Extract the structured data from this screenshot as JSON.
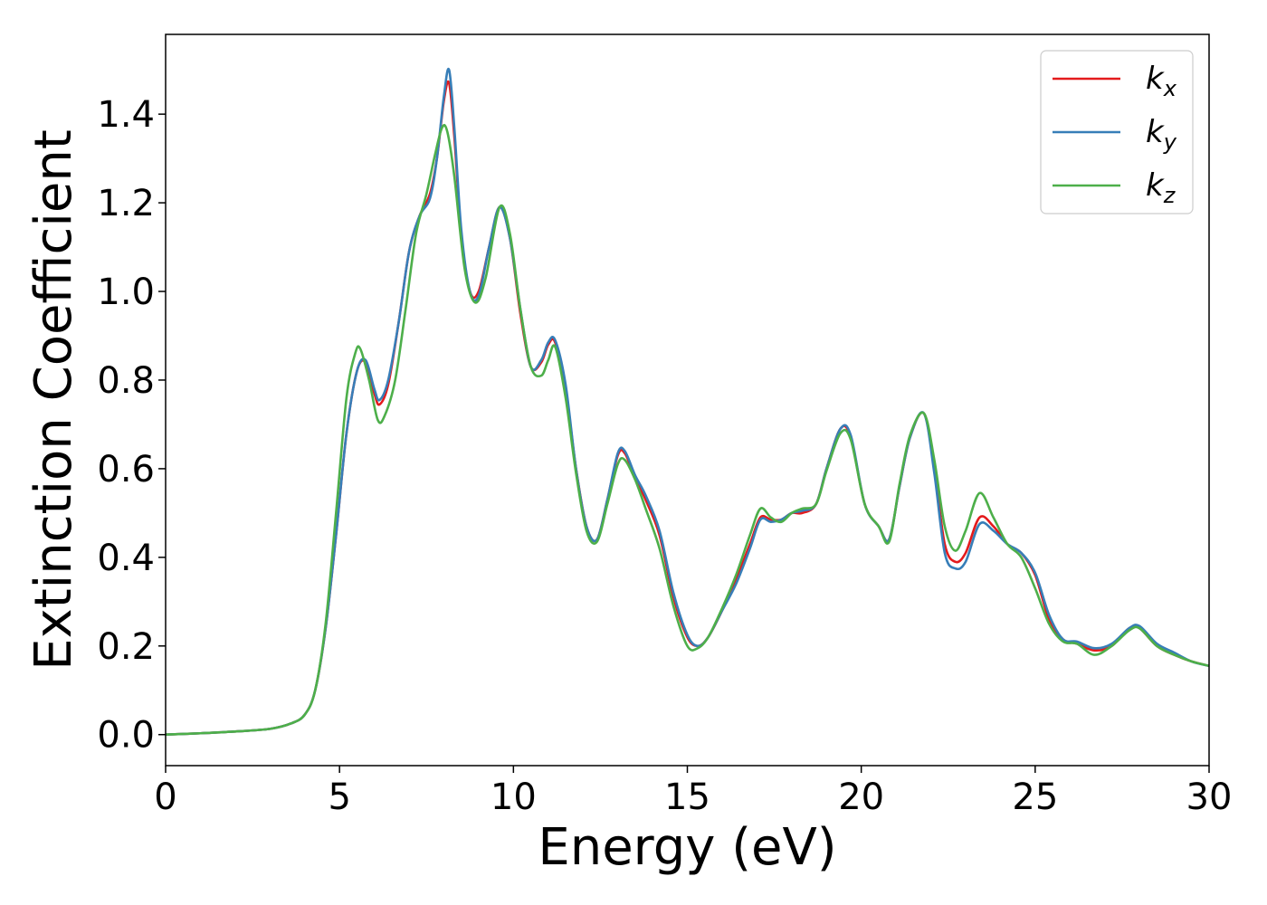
{
  "chart_data": {
    "type": "line",
    "title": "",
    "xlabel": "Energy (eV)",
    "ylabel": "Extinction Coefficient",
    "xlim": [
      0,
      30
    ],
    "ylim": [
      -0.07,
      1.58
    ],
    "xticks": [
      0,
      5,
      10,
      15,
      20,
      25,
      30
    ],
    "xtick_labels": [
      "0",
      "5",
      "10",
      "15",
      "20",
      "25",
      "30"
    ],
    "yticks": [
      0.0,
      0.2,
      0.4,
      0.6,
      0.8,
      1.0,
      1.2,
      1.4
    ],
    "ytick_labels": [
      "0.0",
      "0.2",
      "0.4",
      "0.6",
      "0.8",
      "1.0",
      "1.2",
      "1.4"
    ],
    "grid": false,
    "legend_position": "top-right",
    "series": [
      {
        "name": "k_x",
        "label_base": "k",
        "label_sub": "x",
        "color": "#e41a1c",
        "x": [
          0,
          1,
          2,
          3,
          3.6,
          4.0,
          4.3,
          4.6,
          4.9,
          5.2,
          5.5,
          5.75,
          6.0,
          6.15,
          6.4,
          6.7,
          7.0,
          7.3,
          7.6,
          7.8,
          8.0,
          8.15,
          8.3,
          8.5,
          8.75,
          9.0,
          9.3,
          9.6,
          9.9,
          10.2,
          10.5,
          10.8,
          11.0,
          11.2,
          11.5,
          11.8,
          12.1,
          12.4,
          12.7,
          13.0,
          13.2,
          13.5,
          13.8,
          14.2,
          14.6,
          15.0,
          15.3,
          15.6,
          16.0,
          16.4,
          16.8,
          17.1,
          17.4,
          17.7,
          18.0,
          18.3,
          18.7,
          19.0,
          19.4,
          19.7,
          20.1,
          20.5,
          20.8,
          21.1,
          21.4,
          21.8,
          22.1,
          22.4,
          22.7,
          23.0,
          23.4,
          23.8,
          24.2,
          24.6,
          25.0,
          25.4,
          25.8,
          26.2,
          26.7,
          27.2,
          27.7,
          28.0,
          28.5,
          29.0,
          29.5,
          30.0
        ],
        "y": [
          0.0,
          0.003,
          0.007,
          0.013,
          0.025,
          0.045,
          0.1,
          0.24,
          0.45,
          0.68,
          0.82,
          0.84,
          0.77,
          0.745,
          0.79,
          0.93,
          1.09,
          1.17,
          1.22,
          1.3,
          1.43,
          1.47,
          1.35,
          1.13,
          1.0,
          1.0,
          1.1,
          1.19,
          1.12,
          0.95,
          0.83,
          0.84,
          0.88,
          0.885,
          0.78,
          0.6,
          0.47,
          0.44,
          0.53,
          0.63,
          0.635,
          0.58,
          0.53,
          0.45,
          0.31,
          0.22,
          0.2,
          0.22,
          0.28,
          0.35,
          0.43,
          0.49,
          0.485,
          0.485,
          0.5,
          0.5,
          0.52,
          0.6,
          0.69,
          0.67,
          0.52,
          0.47,
          0.44,
          0.56,
          0.67,
          0.725,
          0.6,
          0.43,
          0.39,
          0.41,
          0.49,
          0.47,
          0.43,
          0.41,
          0.36,
          0.26,
          0.215,
          0.205,
          0.19,
          0.2,
          0.24,
          0.24,
          0.2,
          0.18,
          0.165,
          0.155
        ]
      },
      {
        "name": "k_y",
        "label_base": "k",
        "label_sub": "y",
        "color": "#377eb8",
        "x": [
          0,
          1,
          2,
          3,
          3.6,
          4.0,
          4.3,
          4.6,
          4.9,
          5.2,
          5.5,
          5.75,
          6.0,
          6.15,
          6.4,
          6.7,
          7.0,
          7.3,
          7.6,
          7.8,
          8.0,
          8.15,
          8.3,
          8.5,
          8.75,
          9.0,
          9.3,
          9.6,
          9.9,
          10.2,
          10.5,
          10.8,
          11.0,
          11.2,
          11.5,
          11.8,
          12.1,
          12.4,
          12.7,
          13.0,
          13.2,
          13.5,
          13.8,
          14.2,
          14.6,
          15.0,
          15.3,
          15.6,
          16.0,
          16.4,
          16.8,
          17.1,
          17.4,
          17.7,
          18.0,
          18.3,
          18.7,
          19.0,
          19.4,
          19.7,
          20.1,
          20.5,
          20.8,
          21.1,
          21.4,
          21.8,
          22.1,
          22.4,
          22.7,
          23.0,
          23.4,
          23.8,
          24.2,
          24.6,
          25.0,
          25.4,
          25.8,
          26.2,
          26.7,
          27.2,
          27.7,
          28.0,
          28.5,
          29.0,
          29.5,
          30.0
        ],
        "y": [
          0.0,
          0.003,
          0.007,
          0.013,
          0.025,
          0.045,
          0.1,
          0.24,
          0.45,
          0.68,
          0.82,
          0.845,
          0.78,
          0.755,
          0.8,
          0.93,
          1.09,
          1.17,
          1.21,
          1.3,
          1.44,
          1.5,
          1.37,
          1.14,
          1.0,
          0.99,
          1.1,
          1.19,
          1.12,
          0.96,
          0.83,
          0.845,
          0.885,
          0.89,
          0.79,
          0.6,
          0.47,
          0.44,
          0.53,
          0.635,
          0.64,
          0.585,
          0.54,
          0.46,
          0.32,
          0.225,
          0.2,
          0.22,
          0.28,
          0.34,
          0.42,
          0.485,
          0.48,
          0.485,
          0.5,
          0.505,
          0.52,
          0.6,
          0.69,
          0.675,
          0.52,
          0.47,
          0.44,
          0.56,
          0.67,
          0.725,
          0.59,
          0.41,
          0.375,
          0.39,
          0.475,
          0.46,
          0.43,
          0.41,
          0.365,
          0.27,
          0.215,
          0.21,
          0.195,
          0.205,
          0.24,
          0.245,
          0.205,
          0.185,
          0.165,
          0.155
        ]
      },
      {
        "name": "k_z",
        "label_base": "k",
        "label_sub": "z",
        "color": "#4daf4a",
        "x": [
          0,
          1,
          2,
          3,
          3.6,
          4.0,
          4.3,
          4.6,
          4.9,
          5.2,
          5.45,
          5.6,
          5.85,
          6.1,
          6.3,
          6.6,
          6.9,
          7.2,
          7.5,
          7.75,
          7.95,
          8.1,
          8.3,
          8.6,
          8.9,
          9.2,
          9.6,
          9.9,
          10.2,
          10.5,
          10.8,
          11.0,
          11.2,
          11.5,
          11.8,
          12.1,
          12.4,
          12.7,
          13.0,
          13.2,
          13.5,
          13.8,
          14.2,
          14.6,
          15.0,
          15.3,
          15.6,
          16.0,
          16.4,
          16.8,
          17.1,
          17.4,
          17.7,
          18.0,
          18.3,
          18.7,
          19.0,
          19.4,
          19.7,
          20.1,
          20.5,
          20.8,
          21.1,
          21.4,
          21.8,
          22.1,
          22.4,
          22.7,
          23.0,
          23.4,
          23.8,
          24.2,
          24.6,
          25.0,
          25.4,
          25.8,
          26.2,
          26.7,
          27.2,
          27.7,
          28.0,
          28.5,
          29.0,
          29.5,
          30.0
        ],
        "y": [
          0.0,
          0.003,
          0.007,
          0.013,
          0.025,
          0.045,
          0.1,
          0.25,
          0.5,
          0.76,
          0.86,
          0.87,
          0.8,
          0.71,
          0.72,
          0.8,
          0.96,
          1.13,
          1.22,
          1.31,
          1.37,
          1.36,
          1.26,
          1.05,
          0.975,
          1.03,
          1.19,
          1.13,
          0.96,
          0.83,
          0.81,
          0.845,
          0.875,
          0.76,
          0.59,
          0.46,
          0.435,
          0.52,
          0.61,
          0.62,
          0.575,
          0.51,
          0.42,
          0.29,
          0.2,
          0.195,
          0.22,
          0.285,
          0.36,
          0.45,
          0.51,
          0.49,
          0.48,
          0.5,
          0.51,
          0.52,
          0.595,
          0.68,
          0.665,
          0.52,
          0.47,
          0.435,
          0.565,
          0.675,
          0.725,
          0.62,
          0.47,
          0.415,
          0.46,
          0.545,
          0.49,
          0.43,
          0.4,
          0.33,
          0.25,
          0.21,
          0.205,
          0.18,
          0.2,
          0.235,
          0.24,
          0.2,
          0.18,
          0.165,
          0.155
        ]
      }
    ]
  }
}
